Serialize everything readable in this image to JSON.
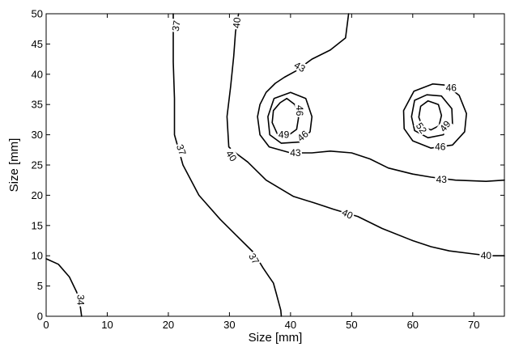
{
  "chart_data": {
    "type": "contour",
    "title": "",
    "xlabel": "Size [mm]",
    "ylabel": "Size [mm]",
    "xlim": [
      0,
      75
    ],
    "ylim": [
      0,
      50
    ],
    "xticks": [
      "0",
      "10",
      "20",
      "30",
      "40",
      "50",
      "60",
      "70"
    ],
    "yticks": [
      "0",
      "5",
      "10",
      "15",
      "20",
      "25",
      "30",
      "35",
      "40",
      "45",
      "50"
    ],
    "grid": false,
    "levels": [
      {
        "level": "34",
        "paths": [
          [
            [
              0,
              9.5
            ],
            [
              2,
              8.6
            ],
            [
              3.8,
              6.5
            ],
            [
              5,
              4
            ],
            [
              5.6,
              1.5
            ],
            [
              5.8,
              0
            ]
          ]
        ],
        "labels": [
          {
            "x": 5.6,
            "y": 2.7,
            "rot": 90
          }
        ]
      },
      {
        "level": "37",
        "paths": [
          [
            [
              20.8,
              50
            ],
            [
              20.8,
              42
            ],
            [
              21,
              36
            ],
            [
              21,
              30
            ],
            [
              22.4,
              25
            ],
            [
              25,
              20
            ],
            [
              28.5,
              16
            ],
            [
              31.5,
              13
            ],
            [
              34,
              10.5
            ],
            [
              35.5,
              8
            ],
            [
              36.5,
              6.5
            ],
            [
              37.2,
              5.5
            ],
            [
              37.6,
              4
            ],
            [
              38,
              2.5
            ],
            [
              38.4,
              1
            ],
            [
              38.5,
              0
            ]
          ]
        ],
        "labels": [
          {
            "x": 21.3,
            "y": 48,
            "rot": -80
          },
          {
            "x": 22.1,
            "y": 27.5,
            "rot": 70
          },
          {
            "x": 34,
            "y": 9.5,
            "rot": 60
          }
        ]
      },
      {
        "level": "40",
        "paths": [
          [
            [
              31.5,
              50
            ],
            [
              31,
              47
            ],
            [
              30.7,
              43
            ],
            [
              30.2,
              38
            ],
            [
              29.6,
              33
            ],
            [
              29.9,
              28
            ],
            [
              31,
              27
            ],
            [
              33,
              25.5
            ],
            [
              36,
              22.5
            ],
            [
              38.5,
              21
            ],
            [
              40.5,
              19.8
            ],
            [
              44,
              18.7
            ],
            [
              47,
              17.7
            ],
            [
              51,
              16.5
            ],
            [
              55,
              14.5
            ],
            [
              60,
              12.5
            ],
            [
              63,
              11.5
            ],
            [
              66,
              10.8
            ],
            [
              70,
              10.3
            ],
            [
              72.5,
              10
            ],
            [
              75,
              10
            ]
          ]
        ],
        "labels": [
          {
            "x": 31.2,
            "y": 48.5,
            "rot": -85
          },
          {
            "x": 30.3,
            "y": 26.5,
            "rot": 55
          },
          {
            "x": 49.3,
            "y": 16.9,
            "rot": 25
          },
          {
            "x": 72,
            "y": 10,
            "rot": 0
          }
        ]
      },
      {
        "level": "43",
        "paths": [
          [
            [
              49.5,
              50
            ],
            [
              49,
              46
            ],
            [
              46.5,
              44
            ],
            [
              43.5,
              42.5
            ],
            [
              40.8,
              40.5
            ],
            [
              39,
              39.5
            ],
            [
              37.5,
              38.5
            ],
            [
              36,
              37
            ],
            [
              35,
              35
            ],
            [
              34.6,
              33
            ],
            [
              35,
              30
            ],
            [
              36.5,
              28
            ],
            [
              40,
              27
            ],
            [
              43.5,
              27
            ],
            [
              46.5,
              27.3
            ],
            [
              50,
              27
            ],
            [
              53,
              26
            ],
            [
              56,
              24.5
            ],
            [
              60,
              23.5
            ],
            [
              63,
              23
            ],
            [
              67,
              22.5
            ],
            [
              72,
              22.3
            ],
            [
              75,
              22.5
            ]
          ]
        ],
        "labels": [
          {
            "x": 41.5,
            "y": 41.2,
            "rot": 30
          },
          {
            "x": 40.8,
            "y": 27,
            "rot": 0
          },
          {
            "x": 64.7,
            "y": 22.6,
            "rot": 0
          }
        ]
      },
      {
        "level": "46",
        "paths": [
          [
            [
              43.5,
              33
            ],
            [
              42.5,
              36
            ],
            [
              40,
              37
            ],
            [
              37.3,
              36
            ],
            [
              36.3,
              33
            ],
            [
              36.6,
              30
            ],
            [
              38.5,
              28.6
            ],
            [
              41.5,
              28.8
            ],
            [
              43.2,
              30.5
            ],
            [
              43.5,
              33
            ]
          ],
          [
            [
              63.3,
              38.4
            ],
            [
              60.2,
              37.2
            ],
            [
              58.5,
              34
            ],
            [
              58.6,
              31
            ],
            [
              60,
              29
            ],
            [
              63,
              27.8
            ],
            [
              66.5,
              28.3
            ],
            [
              68.5,
              30.5
            ],
            [
              68.8,
              33.5
            ],
            [
              67.6,
              36.5
            ],
            [
              65.5,
              38.2
            ],
            [
              63.3,
              38.4
            ]
          ]
        ],
        "labels": [
          {
            "x": 41.5,
            "y": 34,
            "rot": 90
          },
          {
            "x": 42,
            "y": 29.8,
            "rot": -40
          },
          {
            "x": 66.3,
            "y": 37.8,
            "rot": 0
          },
          {
            "x": 64.5,
            "y": 28,
            "rot": 0
          }
        ]
      },
      {
        "level": "49",
        "paths": [
          [
            [
              38.3,
              35.3
            ],
            [
              37.2,
              34
            ],
            [
              37,
              32
            ],
            [
              37.8,
              30.2
            ],
            [
              39.5,
              29.8
            ],
            [
              41,
              30.9
            ],
            [
              41.3,
              32.8
            ],
            [
              40.7,
              35
            ],
            [
              39.4,
              36
            ],
            [
              38.3,
              35.3
            ]
          ],
          [
            [
              62.3,
              36.6
            ],
            [
              60.3,
              35.7
            ],
            [
              59.8,
              33
            ],
            [
              60.3,
              30.7
            ],
            [
              62.5,
              29.5
            ],
            [
              65,
              30
            ],
            [
              66.5,
              31.8
            ],
            [
              66.4,
              34.3
            ],
            [
              64.7,
              36.4
            ],
            [
              62.3,
              36.6
            ]
          ]
        ],
        "labels": [
          {
            "x": 38.9,
            "y": 30,
            "rot": 0
          },
          {
            "x": 65.3,
            "y": 31.4,
            "rot": -50
          }
        ]
      },
      {
        "level": "52",
        "paths": [
          [
            [
              62.5,
              35.6
            ],
            [
              61.3,
              34.7
            ],
            [
              61,
              32.9
            ],
            [
              61.6,
              31.3
            ],
            [
              63,
              30.8
            ],
            [
              64.3,
              31.5
            ],
            [
              64.7,
              33.2
            ],
            [
              64.2,
              35
            ],
            [
              62.5,
              35.6
            ]
          ]
        ],
        "labels": [
          {
            "x": 61.4,
            "y": 31.1,
            "rot": 55
          }
        ]
      }
    ]
  }
}
